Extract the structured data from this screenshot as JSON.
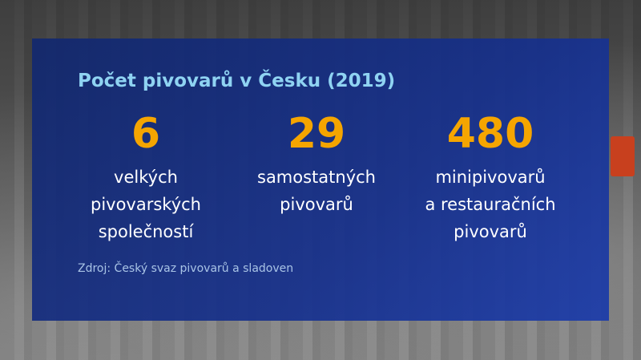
{
  "title": "Počet pivovarů v Česku (2019)",
  "stats": [
    {
      "value": "6",
      "label": "velkých\npivovarských\nspolečností"
    },
    {
      "value": "29",
      "label": "samostatných\npivovarů"
    },
    {
      "value": "480",
      "label": "minipivovarů\na restauračních\npivovarů"
    }
  ],
  "source": "Zdroj: Český svaz pivovarů a sladoven",
  "colors": {
    "panel": "#16308c",
    "title": "#8fd3f2",
    "numbers": "#f5a500",
    "labels": "#ffffff"
  }
}
